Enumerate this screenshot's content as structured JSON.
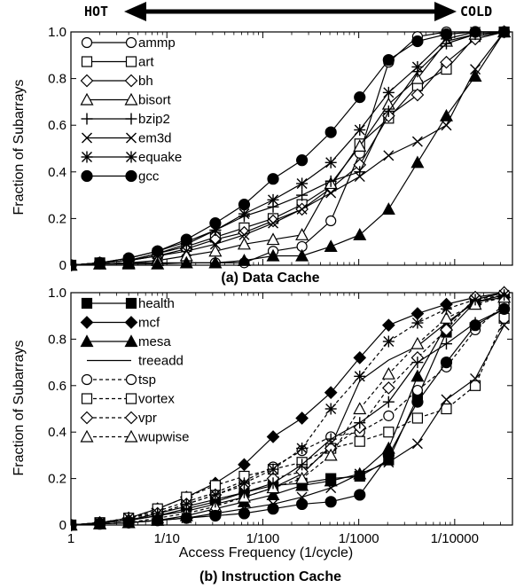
{
  "figure": {
    "hot_label": "HOT",
    "cold_label": "COLD",
    "x_axis_label": "Access Frequency (1/cycle)"
  },
  "chart_data": [
    {
      "type": "line",
      "caption": "(a) Data Cache",
      "ylabel": "Fraction of Subarrays",
      "xscale": "log-reciprocal",
      "xlim": [
        1,
        40000
      ],
      "ylim": [
        0,
        1.0
      ],
      "yticks": [
        "0",
        "0.2",
        "0.4",
        "0.6",
        "0.8",
        "1.0"
      ],
      "xticks": [],
      "grid": false,
      "legend_position": "top-left",
      "x": [
        1,
        2,
        4,
        8,
        16,
        32,
        64,
        128,
        256,
        512,
        1024,
        2048,
        4096,
        8192,
        16384,
        32768
      ],
      "series": [
        {
          "name": "ammp",
          "marker": "circle-open",
          "style": "solid",
          "values": [
            0,
            0.005,
            0.01,
            0.01,
            0.01,
            0.01,
            0.01,
            0.06,
            0.08,
            0.19,
            0.48,
            0.87,
            0.98,
            1.0,
            1.0,
            1.0
          ]
        },
        {
          "name": "art",
          "marker": "square-open",
          "style": "solid",
          "values": [
            0,
            0.01,
            0.02,
            0.05,
            0.08,
            0.12,
            0.16,
            0.2,
            0.26,
            0.34,
            0.52,
            0.63,
            0.77,
            0.84,
            0.98,
            1.0
          ]
        },
        {
          "name": "bh",
          "marker": "diamond-open",
          "style": "solid",
          "values": [
            0,
            0.01,
            0.02,
            0.04,
            0.07,
            0.11,
            0.14,
            0.19,
            0.24,
            0.33,
            0.43,
            0.64,
            0.73,
            0.87,
            0.97,
            1.0
          ]
        },
        {
          "name": "bisort",
          "marker": "triangle-open",
          "style": "solid",
          "values": [
            0,
            0.005,
            0.01,
            0.02,
            0.04,
            0.06,
            0.09,
            0.11,
            0.13,
            0.35,
            0.51,
            0.69,
            0.8,
            0.96,
            0.99,
            1.0
          ]
        },
        {
          "name": "bzip2",
          "marker": "plus",
          "style": "solid",
          "values": [
            0,
            0.01,
            0.03,
            0.06,
            0.1,
            0.15,
            0.21,
            0.25,
            0.3,
            0.36,
            0.4,
            0.66,
            0.83,
            0.95,
            0.99,
            1.0
          ]
        },
        {
          "name": "em3d",
          "marker": "cross",
          "style": "solid",
          "values": [
            0,
            0.01,
            0.02,
            0.04,
            0.06,
            0.09,
            0.13,
            0.18,
            0.24,
            0.31,
            0.38,
            0.47,
            0.53,
            0.6,
            0.84,
            1.0
          ]
        },
        {
          "name": "equake",
          "marker": "asterisk",
          "style": "solid",
          "values": [
            0,
            0.01,
            0.02,
            0.05,
            0.09,
            0.15,
            0.22,
            0.28,
            0.35,
            0.44,
            0.58,
            0.74,
            0.85,
            0.97,
            1.0,
            1.0
          ]
        },
        {
          "name": "gcc",
          "marker": "circle-filled",
          "style": "solid",
          "values": [
            0,
            0.01,
            0.03,
            0.06,
            0.11,
            0.18,
            0.26,
            0.37,
            0.45,
            0.57,
            0.72,
            0.88,
            0.96,
            0.99,
            1.0,
            1.0
          ]
        },
        {
          "name": "",
          "marker": "triangle-filled",
          "style": "solid",
          "values": [
            0,
            0.005,
            0.005,
            0.005,
            0.01,
            0.01,
            0.02,
            0.04,
            0.04,
            0.08,
            0.13,
            0.24,
            0.44,
            0.64,
            0.81,
            1.0
          ]
        }
      ]
    },
    {
      "type": "line",
      "caption": "(b) Instruction Cache",
      "ylabel": "Fraction of Subarrays",
      "xlabel": "Access Frequency (1/cycle)",
      "xscale": "log-reciprocal",
      "xlim": [
        1,
        40000
      ],
      "ylim": [
        0,
        1.0
      ],
      "yticks": [
        "0",
        "0.2",
        "0.4",
        "0.6",
        "0.8",
        "1.0"
      ],
      "xticks": [
        "1",
        "1/10",
        "1/100",
        "1/1000",
        "1/10000"
      ],
      "grid": false,
      "legend_position": "top-left",
      "x": [
        1,
        2,
        4,
        8,
        16,
        32,
        64,
        128,
        256,
        512,
        1024,
        2048,
        4096,
        8192,
        16384,
        32768
      ],
      "series": [
        {
          "name": "health",
          "marker": "square-filled",
          "style": "solid",
          "values": [
            0,
            0.01,
            0.02,
            0.05,
            0.08,
            0.11,
            0.14,
            0.17,
            0.18,
            0.2,
            0.21,
            0.28,
            0.55,
            0.83,
            0.96,
            0.98
          ]
        },
        {
          "name": "mcf",
          "marker": "diamond-filled",
          "style": "solid",
          "values": [
            0,
            0.01,
            0.03,
            0.07,
            0.12,
            0.18,
            0.26,
            0.38,
            0.46,
            0.57,
            0.72,
            0.86,
            0.91,
            0.95,
            0.98,
            1.0
          ]
        },
        {
          "name": "mesa",
          "marker": "triangle-filled",
          "style": "solid",
          "values": [
            0,
            0.005,
            0.01,
            0.02,
            0.04,
            0.07,
            0.1,
            0.13,
            0.17,
            0.19,
            0.22,
            0.33,
            0.64,
            0.86,
            0.97,
            1.0
          ]
        },
        {
          "name": "treeadd",
          "marker": "none",
          "style": "solid",
          "values": [
            0,
            0.01,
            0.02,
            0.04,
            0.06,
            0.09,
            0.12,
            0.16,
            0.22,
            0.34,
            0.62,
            0.71,
            0.77,
            0.87,
            0.96,
            0.99
          ]
        },
        {
          "name": "tsp",
          "marker": "circle-open",
          "style": "dashed",
          "values": [
            0,
            0.01,
            0.03,
            0.06,
            0.1,
            0.14,
            0.19,
            0.25,
            0.32,
            0.38,
            0.4,
            0.47,
            0.58,
            0.68,
            0.84,
            0.95
          ]
        },
        {
          "name": "vortex",
          "marker": "square-open",
          "style": "dashed",
          "values": [
            0,
            0.01,
            0.03,
            0.07,
            0.12,
            0.17,
            0.21,
            0.24,
            0.27,
            0.33,
            0.36,
            0.4,
            0.46,
            0.5,
            0.6,
            0.89
          ]
        },
        {
          "name": "vpr",
          "marker": "diamond-open",
          "style": "dashed",
          "values": [
            0,
            0.01,
            0.02,
            0.05,
            0.09,
            0.13,
            0.17,
            0.2,
            0.23,
            0.33,
            0.42,
            0.59,
            0.72,
            0.84,
            0.98,
            1.0
          ]
        },
        {
          "name": "wupwise",
          "marker": "triangle-open",
          "style": "dashed",
          "values": [
            0,
            0.005,
            0.01,
            0.03,
            0.05,
            0.08,
            0.12,
            0.16,
            0.2,
            0.3,
            0.5,
            0.65,
            0.78,
            0.89,
            0.95,
            0.98
          ]
        },
        {
          "name": "",
          "marker": "circle-filled",
          "style": "solid",
          "values": [
            0,
            0.005,
            0.01,
            0.02,
            0.03,
            0.04,
            0.05,
            0.07,
            0.09,
            0.1,
            0.13,
            0.3,
            0.53,
            0.7,
            0.86,
            0.93
          ]
        },
        {
          "name": "",
          "marker": "cross",
          "style": "solid",
          "values": [
            0,
            0.005,
            0.01,
            0.02,
            0.03,
            0.05,
            0.07,
            0.09,
            0.12,
            0.16,
            0.22,
            0.27,
            0.35,
            0.54,
            0.63,
            0.86
          ]
        },
        {
          "name": "",
          "marker": "plus",
          "style": "solid",
          "values": [
            0,
            0.01,
            0.02,
            0.04,
            0.07,
            0.1,
            0.14,
            0.18,
            0.26,
            0.37,
            0.44,
            0.53,
            0.7,
            0.78,
            0.87,
            0.93
          ]
        },
        {
          "name": "",
          "marker": "asterisk",
          "style": "dashed",
          "values": [
            0,
            0.01,
            0.03,
            0.05,
            0.09,
            0.13,
            0.18,
            0.24,
            0.33,
            0.5,
            0.64,
            0.79,
            0.87,
            0.93,
            0.97,
            0.99
          ]
        }
      ]
    }
  ]
}
